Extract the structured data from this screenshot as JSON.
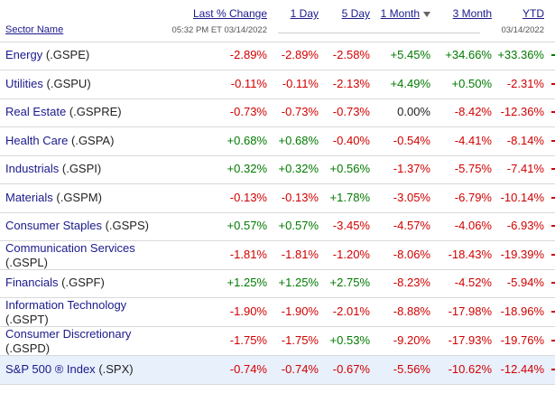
{
  "header": {
    "sector_name": "Sector Name",
    "last_pct_change": "Last % Change",
    "one_day": "1 Day",
    "five_day": "5 Day",
    "one_month": "1 Month",
    "three_month": "3 Month",
    "ytd": "YTD",
    "timestamp": "05:32 PM ET 03/14/2022",
    "ytd_date": "03/14/2022"
  },
  "colors": {
    "negative": "#d20000",
    "positive": "#007a00",
    "link": "#1a1a8c",
    "highlight": "#e8f0fb"
  },
  "rows": [
    {
      "name": "Energy",
      "ticker": "(.GSPE)",
      "last": "-2.89%",
      "d1": "-2.89%",
      "d5": "-2.58%",
      "m1": "+5.45%",
      "m3": "+34.66%",
      "ytd": "+33.36%"
    },
    {
      "name": "Utilities",
      "ticker": "(.GSPU)",
      "last": "-0.11%",
      "d1": "-0.11%",
      "d5": "-2.13%",
      "m1": "+4.49%",
      "m3": "+0.50%",
      "ytd": "-2.31%"
    },
    {
      "name": "Real Estate",
      "ticker": "(.GSPRE)",
      "last": "-0.73%",
      "d1": "-0.73%",
      "d5": "-0.73%",
      "m1": "0.00%",
      "m3": "-8.42%",
      "ytd": "-12.36%"
    },
    {
      "name": "Health Care",
      "ticker": "(.GSPA)",
      "last": "+0.68%",
      "d1": "+0.68%",
      "d5": "-0.40%",
      "m1": "-0.54%",
      "m3": "-4.41%",
      "ytd": "-8.14%"
    },
    {
      "name": "Industrials",
      "ticker": "(.GSPI)",
      "last": "+0.32%",
      "d1": "+0.32%",
      "d5": "+0.56%",
      "m1": "-1.37%",
      "m3": "-5.75%",
      "ytd": "-7.41%"
    },
    {
      "name": "Materials",
      "ticker": "(.GSPM)",
      "last": "-0.13%",
      "d1": "-0.13%",
      "d5": "+1.78%",
      "m1": "-3.05%",
      "m3": "-6.79%",
      "ytd": "-10.14%"
    },
    {
      "name": "Consumer Staples",
      "ticker": "(.GSPS)",
      "last": "+0.57%",
      "d1": "+0.57%",
      "d5": "-3.45%",
      "m1": "-4.57%",
      "m3": "-4.06%",
      "ytd": "-6.93%"
    },
    {
      "name": "Communication Services",
      "ticker": "(.GSPL)",
      "last": "-1.81%",
      "d1": "-1.81%",
      "d5": "-1.20%",
      "m1": "-8.06%",
      "m3": "-18.43%",
      "ytd": "-19.39%"
    },
    {
      "name": "Financials",
      "ticker": "(.GSPF)",
      "last": "+1.25%",
      "d1": "+1.25%",
      "d5": "+2.75%",
      "m1": "-8.23%",
      "m3": "-4.52%",
      "ytd": "-5.94%"
    },
    {
      "name": "Information Technology",
      "ticker": "(.GSPT)",
      "last": "-1.90%",
      "d1": "-1.90%",
      "d5": "-2.01%",
      "m1": "-8.88%",
      "m3": "-17.98%",
      "ytd": "-18.96%"
    },
    {
      "name": "Consumer Discretionary",
      "ticker": "(.GSPD)",
      "last": "-1.75%",
      "d1": "-1.75%",
      "d5": "+0.53%",
      "m1": "-9.20%",
      "m3": "-17.93%",
      "ytd": "-19.76%"
    },
    {
      "name": "S&P 500 ® Index",
      "ticker": "(.SPX)",
      "last": "-0.74%",
      "d1": "-0.74%",
      "d5": "-0.67%",
      "m1": "-5.56%",
      "m3": "-10.62%",
      "ytd": "-12.44%"
    }
  ]
}
